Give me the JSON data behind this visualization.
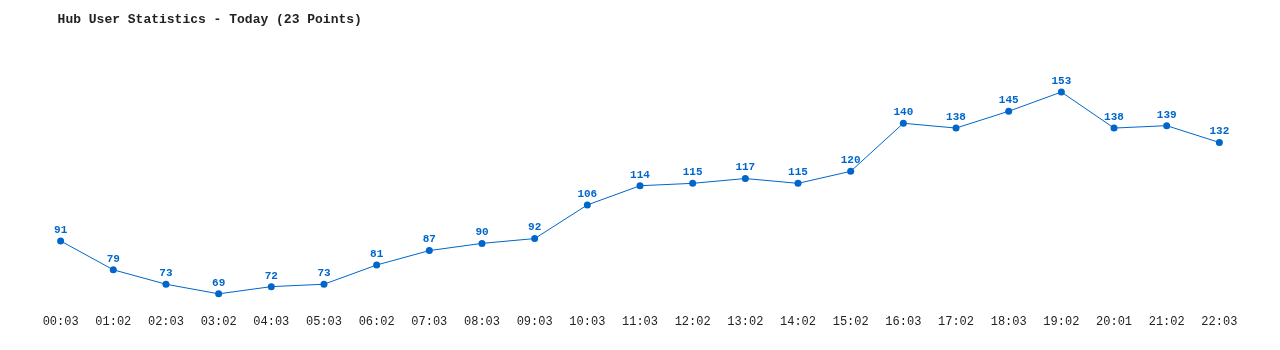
{
  "chart_data": {
    "type": "line",
    "title": "Hub User Statistics - Today (23 Points)",
    "categories": [
      "00:03",
      "01:02",
      "02:03",
      "03:02",
      "04:03",
      "05:03",
      "06:02",
      "07:03",
      "08:03",
      "09:03",
      "10:03",
      "11:03",
      "12:02",
      "13:02",
      "14:02",
      "15:02",
      "16:03",
      "17:02",
      "18:03",
      "19:02",
      "20:01",
      "21:02",
      "22:03"
    ],
    "series": [
      {
        "color": "#0066cc",
        "values": [
          91,
          79,
          73,
          69,
          72,
          73,
          81,
          87,
          90,
          92,
          106,
          114,
          115,
          117,
          115,
          120,
          140,
          138,
          145,
          153,
          138,
          139,
          132
        ]
      }
    ],
    "data_labels": true,
    "marker": "circle",
    "line_style": "solid"
  }
}
